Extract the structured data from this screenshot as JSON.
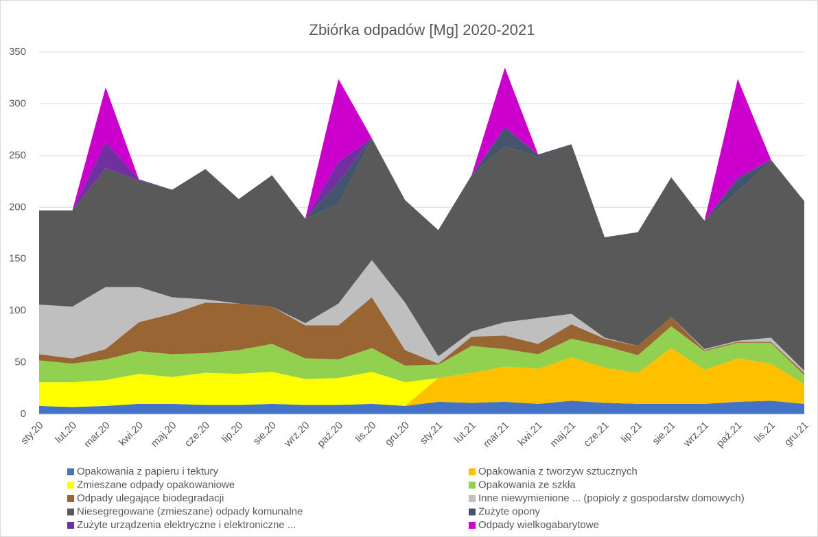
{
  "chart_data": {
    "type": "stacked_area",
    "title": "Zbiórka odpadów [Mg] 2020-2021",
    "categories": [
      "sty.20",
      "lut.20",
      "mar.20",
      "kwi.20",
      "maj.20",
      "cze.20",
      "lip.20",
      "sie.20",
      "wrz.20",
      "paź.20",
      "lis.20",
      "gru.20",
      "sty.21",
      "lut.21",
      "mar.21",
      "kwi.21",
      "maj.21",
      "cze.21",
      "lip.21",
      "sie.21",
      "wrz.21",
      "paź.21",
      "lis.21",
      "gru.21"
    ],
    "ylim": [
      0,
      350
    ],
    "yticks": [
      0,
      50,
      100,
      150,
      200,
      250,
      300,
      350
    ],
    "grid": true,
    "legend": "bottom",
    "series": [
      {
        "name": "Opakowania z papieru i tektury",
        "color": "#4472c4",
        "values": [
          8,
          7,
          8,
          10,
          10,
          9,
          9,
          10,
          9,
          9,
          10,
          8,
          12,
          11,
          12,
          10,
          13,
          11,
          10,
          10,
          10,
          12,
          13,
          10
        ]
      },
      {
        "name": "Opakowania z tworzyw sztucznych",
        "color": "#ffc000",
        "values": [
          0,
          0,
          0,
          0,
          0,
          0,
          0,
          0,
          0,
          0,
          0,
          0,
          23,
          29,
          34,
          34,
          42,
          34,
          30,
          54,
          33,
          42,
          36,
          19
        ]
      },
      {
        "name": "Zmieszane odpady opakowaniowe",
        "color": "#ffff00",
        "values": [
          23,
          24,
          25,
          29,
          26,
          31,
          30,
          31,
          25,
          26,
          31,
          23,
          0,
          0,
          0,
          0,
          0,
          0,
          0,
          0,
          0,
          0,
          0,
          0
        ]
      },
      {
        "name": "Opakowania ze szkła",
        "color": "#92d050",
        "values": [
          21,
          18,
          20,
          22,
          22,
          19,
          23,
          27,
          20,
          18,
          23,
          16,
          13,
          26,
          17,
          14,
          18,
          21,
          17,
          21,
          18,
          15,
          20,
          9
        ]
      },
      {
        "name": "Odpady ulegające biodegradacji",
        "color": "#996633",
        "values": [
          6,
          5,
          10,
          28,
          39,
          49,
          45,
          36,
          32,
          33,
          49,
          15,
          1,
          9,
          13,
          10,
          14,
          7,
          9,
          9,
          1,
          1,
          1,
          2
        ]
      },
      {
        "name": "Inne niewymienione ... (popioły z gospodarstw domowych)",
        "color": "#bfbfbf",
        "values": [
          48,
          50,
          60,
          34,
          16,
          3,
          0,
          0,
          2,
          21,
          36,
          46,
          7,
          5,
          13,
          25,
          10,
          1,
          0,
          0,
          1,
          1,
          4,
          2
        ]
      },
      {
        "name": "Niesegregowane (zmieszane) odpady komunalne",
        "color": "#595959",
        "values": [
          91,
          93,
          115,
          103,
          104,
          126,
          101,
          127,
          101,
          96,
          117,
          99,
          122,
          151,
          170,
          156,
          164,
          97,
          110,
          135,
          124,
          144,
          171,
          164
        ]
      },
      {
        "name": "Zużyte opony",
        "color": "#44546a",
        "values": [
          0,
          0,
          0,
          0,
          0,
          0,
          0,
          0,
          0,
          21,
          1,
          0,
          0,
          0,
          17,
          2,
          0,
          0,
          0,
          0,
          0,
          12,
          1,
          0
        ]
      },
      {
        "name": "Zużyte urządzenia elektryczne i elektroniczne ...",
        "color": "#7030a0",
        "values": [
          0,
          0,
          25,
          1,
          0,
          0,
          0,
          0,
          0,
          20,
          0,
          0,
          0,
          0,
          2,
          0,
          0,
          0,
          0,
          0,
          0,
          2,
          0,
          0
        ]
      },
      {
        "name": "Odpady wielkogabarytowe",
        "color": "#cc00cc",
        "values": [
          0,
          0,
          53,
          0,
          0,
          0,
          0,
          0,
          0,
          80,
          0,
          0,
          0,
          0,
          57,
          0,
          0,
          0,
          0,
          0,
          0,
          95,
          0,
          0
        ]
      }
    ]
  }
}
